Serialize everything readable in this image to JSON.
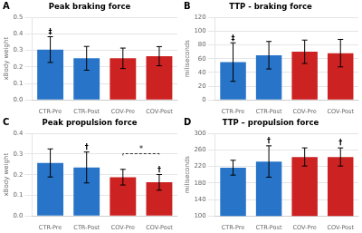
{
  "chart_data": [
    {
      "type": "bar",
      "label": "A",
      "title": "Peak braking force",
      "ylabel": "xBody weight",
      "categories": [
        "CTR-Pre",
        "CTR-Post",
        "COV-Pre",
        "COV-Post"
      ],
      "values": [
        0.305,
        0.252,
        0.252,
        0.265
      ],
      "errors": [
        0.078,
        0.072,
        0.062,
        0.058
      ],
      "colors": [
        "#2874c8",
        "#2874c8",
        "#cc2222",
        "#cc2222"
      ],
      "ylim": [
        0,
        0.5
      ],
      "yticks": [
        {
          "value": 0,
          "label": "0.0"
        },
        0.1,
        0.2,
        0.3,
        0.4,
        0.5
      ],
      "grid": true,
      "annotations": [
        {
          "text": "‡",
          "category": "CTR-Pre",
          "y": 0.388
        }
      ]
    },
    {
      "type": "bar",
      "label": "B",
      "title": "TTP - braking force",
      "ylabel": "miliseconds",
      "categories": [
        "CTR-Pre",
        "CTR-Post",
        "COV-Pre",
        "COV-Post"
      ],
      "values": [
        55,
        65,
        70,
        68
      ],
      "errors": [
        28,
        20,
        17,
        20
      ],
      "colors": [
        "#2874c8",
        "#2874c8",
        "#cc2222",
        "#cc2222"
      ],
      "ylim": [
        0,
        120
      ],
      "yticks": [
        0,
        20,
        40,
        60,
        80,
        100,
        120
      ],
      "grid": true,
      "annotations": [
        {
          "text": "‡",
          "category": "CTR-Pre",
          "y": 84
        }
      ]
    },
    {
      "type": "bar",
      "label": "C",
      "title": "Peak propulsion force",
      "ylabel": "xBody weight",
      "categories": [
        "CTR-Pre",
        "CTR-Post",
        "COV-Pre",
        "COV-Post"
      ],
      "values": [
        0.257,
        0.235,
        0.188,
        0.163
      ],
      "errors": [
        0.068,
        0.075,
        0.038,
        0.038
      ],
      "colors": [
        "#2874c8",
        "#2874c8",
        "#cc2222",
        "#cc2222"
      ],
      "ylim": [
        0,
        0.4
      ],
      "yticks": [
        {
          "value": 0,
          "label": "0.0"
        },
        0.1,
        0.2,
        0.3,
        0.4
      ],
      "grid": true,
      "annotations": [
        {
          "text": "†",
          "category": "CTR-Post",
          "y": 0.315
        },
        {
          "text": "†",
          "category": "COV-Post",
          "y": 0.203
        }
      ],
      "significance_bar": {
        "from": "COV-Pre",
        "to": "COV-Post",
        "y": 0.302,
        "text": "*"
      }
    },
    {
      "type": "bar",
      "label": "D",
      "title": "TTP – propulsion force",
      "ylabel": "miliseconds",
      "categories": [
        "CTR-Pre",
        "CTR-Post",
        "COV-Pre",
        "COV-Post"
      ],
      "values": [
        217,
        232,
        243,
        243
      ],
      "errors": [
        18,
        38,
        22,
        22
      ],
      "colors": [
        "#2874c8",
        "#2874c8",
        "#cc2222",
        "#cc2222"
      ],
      "ylim": [
        100,
        300
      ],
      "yticks": [
        100,
        140,
        180,
        220,
        260,
        300
      ],
      "grid": true,
      "annotations": [
        {
          "text": "†",
          "category": "CTR-Post",
          "y": 272
        },
        {
          "text": "†",
          "category": "COV-Post",
          "y": 267
        }
      ]
    }
  ]
}
